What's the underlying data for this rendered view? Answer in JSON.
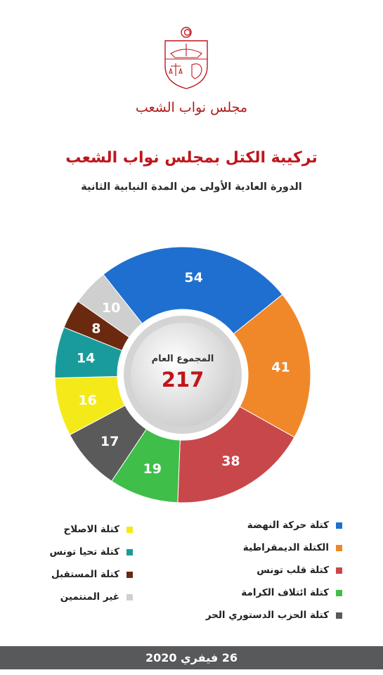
{
  "header": {
    "assembly_name": "مجلس نواب الشعب",
    "title": "تركيبة الكتل بمجلس نواب الشعب",
    "subtitle": "الدورة العادية الأولى من المدة النيابية الثانية"
  },
  "center": {
    "label": "المجموع العام",
    "value": "217"
  },
  "footer": {
    "date": "26 فيفري 2020"
  },
  "colors": {
    "title": "#c0161c",
    "total": "#c0161c",
    "footer_bg": "#58595b"
  },
  "chart_data": {
    "type": "pie",
    "variant": "donut",
    "title": "",
    "total": 217,
    "slices": [
      {
        "name": "كتلة حركة النهضة",
        "value": 54,
        "color": "#1e6fd0"
      },
      {
        "name": "الكتلة الديمقراطية",
        "value": 41,
        "color": "#f0882a"
      },
      {
        "name": "كتلة قلب تونس",
        "value": 38,
        "color": "#c8474a"
      },
      {
        "name": "كتلة ائتلاف الكرامة",
        "value": 19,
        "color": "#3fbe4a"
      },
      {
        "name": "كتلة الحزب الدستوري الحر",
        "value": 17,
        "color": "#5a5a5a"
      },
      {
        "name": "كتلة الاصلاح",
        "value": 16,
        "color": "#f4ea1a"
      },
      {
        "name": "كتلة تحيا تونس",
        "value": 14,
        "color": "#1a9b9b"
      },
      {
        "name": "كتلة المستقبل",
        "value": 8,
        "color": "#6b2a0f"
      },
      {
        "name": "غير المنتمين",
        "value": 10,
        "color": "#cfcfcf"
      }
    ],
    "legend": {
      "right_column": [
        0,
        1,
        2,
        3,
        4
      ],
      "left_column": [
        5,
        6,
        7,
        8
      ]
    }
  }
}
